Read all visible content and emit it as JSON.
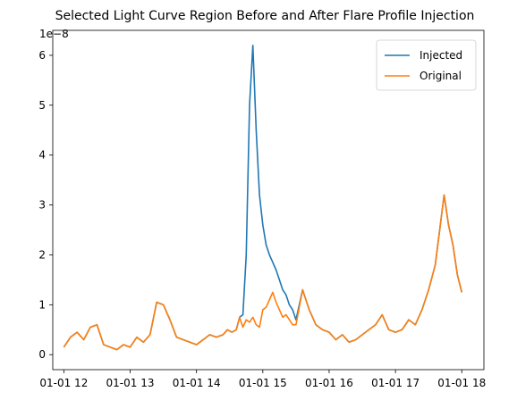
{
  "chart_data": {
    "type": "line",
    "title": "Selected Light Curve Region Before and After Flare Profile Injection",
    "xlabel": "",
    "ylabel": "",
    "y_offset_label": "1e−8",
    "y_units_scale": 1e-08,
    "xlim": [
      "01-01 11:50",
      "01-01 18:20"
    ],
    "ylim": [
      -3e-09,
      6.5e-08
    ],
    "x_ticks": [
      "01-01 12",
      "01-01 13",
      "01-01 14",
      "01-01 15",
      "01-01 16",
      "01-01 17",
      "01-01 18"
    ],
    "y_ticks": [
      0,
      1e-08,
      2e-08,
      3e-08,
      4e-08,
      5e-08,
      6e-08
    ],
    "y_tick_labels": [
      "0",
      "1",
      "2",
      "3",
      "4",
      "5",
      "6"
    ],
    "grid": false,
    "legend_position": "upper-right",
    "series": [
      {
        "name": "Injected",
        "color": "#1f77b4",
        "x": [
          "01-01 12:00",
          "01-01 12:06",
          "01-01 12:12",
          "01-01 12:18",
          "01-01 12:24",
          "01-01 12:30",
          "01-01 12:36",
          "01-01 12:42",
          "01-01 12:48",
          "01-01 12:54",
          "01-01 13:00",
          "01-01 13:06",
          "01-01 13:12",
          "01-01 13:18",
          "01-01 13:24",
          "01-01 13:30",
          "01-01 13:36",
          "01-01 13:42",
          "01-01 13:48",
          "01-01 13:54",
          "01-01 14:00",
          "01-01 14:06",
          "01-01 14:12",
          "01-01 14:18",
          "01-01 14:24",
          "01-01 14:28",
          "01-01 14:32",
          "01-01 14:36",
          "01-01 14:39",
          "01-01 14:42",
          "01-01 14:45",
          "01-01 14:48",
          "01-01 14:51",
          "01-01 14:54",
          "01-01 14:57",
          "01-01 15:00",
          "01-01 15:03",
          "01-01 15:06",
          "01-01 15:09",
          "01-01 15:12",
          "01-01 15:15",
          "01-01 15:18",
          "01-01 15:21",
          "01-01 15:24",
          "01-01 15:27",
          "01-01 15:30",
          "01-01 15:36",
          "01-01 15:42",
          "01-01 15:48",
          "01-01 15:54",
          "01-01 16:00",
          "01-01 16:06",
          "01-01 16:12",
          "01-01 16:18",
          "01-01 16:24",
          "01-01 16:30",
          "01-01 16:36",
          "01-01 16:42",
          "01-01 16:48",
          "01-01 16:54",
          "01-01 17:00",
          "01-01 17:06",
          "01-01 17:12",
          "01-01 17:18",
          "01-01 17:24",
          "01-01 17:30",
          "01-01 17:36",
          "01-01 17:40",
          "01-01 17:44",
          "01-01 17:48",
          "01-01 17:52",
          "01-01 17:56",
          "01-01 18:00"
        ],
        "y": [
          1.5e-09,
          3.5e-09,
          4.5e-09,
          3e-09,
          5.5e-09,
          6e-09,
          2e-09,
          1.5e-09,
          1e-09,
          2e-09,
          1.5e-09,
          3.5e-09,
          2.5e-09,
          4e-09,
          1.05e-08,
          1e-08,
          7e-09,
          3.5e-09,
          3e-09,
          2.5e-09,
          2e-09,
          3e-09,
          4e-09,
          3.5e-09,
          4e-09,
          5e-09,
          4.5e-09,
          5e-09,
          7.5e-09,
          8e-09,
          2e-08,
          5e-08,
          6.2e-08,
          4.5e-08,
          3.2e-08,
          2.6e-08,
          2.2e-08,
          2e-08,
          1.85e-08,
          1.7e-08,
          1.5e-08,
          1.3e-08,
          1.2e-08,
          1e-08,
          9e-09,
          7e-09,
          1.3e-08,
          9e-09,
          6e-09,
          5e-09,
          4.5e-09,
          3e-09,
          4e-09,
          2.5e-09,
          3e-09,
          4e-09,
          5e-09,
          6e-09,
          8e-09,
          5e-09,
          4.5e-09,
          5e-09,
          7e-09,
          6e-09,
          9e-09,
          1.3e-08,
          1.8e-08,
          2.5e-08,
          3.2e-08,
          2.6e-08,
          2.2e-08,
          1.6e-08,
          1.25e-08
        ]
      },
      {
        "name": "Original",
        "color": "#ff7f0e",
        "x": [
          "01-01 12:00",
          "01-01 12:06",
          "01-01 12:12",
          "01-01 12:18",
          "01-01 12:24",
          "01-01 12:30",
          "01-01 12:36",
          "01-01 12:42",
          "01-01 12:48",
          "01-01 12:54",
          "01-01 13:00",
          "01-01 13:06",
          "01-01 13:12",
          "01-01 13:18",
          "01-01 13:24",
          "01-01 13:30",
          "01-01 13:36",
          "01-01 13:42",
          "01-01 13:48",
          "01-01 13:54",
          "01-01 14:00",
          "01-01 14:06",
          "01-01 14:12",
          "01-01 14:18",
          "01-01 14:24",
          "01-01 14:28",
          "01-01 14:32",
          "01-01 14:36",
          "01-01 14:39",
          "01-01 14:42",
          "01-01 14:45",
          "01-01 14:48",
          "01-01 14:51",
          "01-01 14:54",
          "01-01 14:57",
          "01-01 15:00",
          "01-01 15:03",
          "01-01 15:06",
          "01-01 15:09",
          "01-01 15:12",
          "01-01 15:15",
          "01-01 15:18",
          "01-01 15:21",
          "01-01 15:24",
          "01-01 15:27",
          "01-01 15:30",
          "01-01 15:36",
          "01-01 15:42",
          "01-01 15:48",
          "01-01 15:54",
          "01-01 16:00",
          "01-01 16:06",
          "01-01 16:12",
          "01-01 16:18",
          "01-01 16:24",
          "01-01 16:30",
          "01-01 16:36",
          "01-01 16:42",
          "01-01 16:48",
          "01-01 16:54",
          "01-01 17:00",
          "01-01 17:06",
          "01-01 17:12",
          "01-01 17:18",
          "01-01 17:24",
          "01-01 17:30",
          "01-01 17:36",
          "01-01 17:40",
          "01-01 17:44",
          "01-01 17:48",
          "01-01 17:52",
          "01-01 17:56",
          "01-01 18:00"
        ],
        "y": [
          1.5e-09,
          3.5e-09,
          4.5e-09,
          3e-09,
          5.5e-09,
          6e-09,
          2e-09,
          1.5e-09,
          1e-09,
          2e-09,
          1.5e-09,
          3.5e-09,
          2.5e-09,
          4e-09,
          1.05e-08,
          1e-08,
          7e-09,
          3.5e-09,
          3e-09,
          2.5e-09,
          2e-09,
          3e-09,
          4e-09,
          3.5e-09,
          4e-09,
          5e-09,
          4.5e-09,
          5e-09,
          7.5e-09,
          5.5e-09,
          7e-09,
          6.5e-09,
          7.5e-09,
          6e-09,
          5.5e-09,
          9e-09,
          9.5e-09,
          1.1e-08,
          1.25e-08,
          1.05e-08,
          9e-09,
          7.5e-09,
          8e-09,
          7e-09,
          6e-09,
          6e-09,
          1.3e-08,
          9e-09,
          6e-09,
          5e-09,
          4.5e-09,
          3e-09,
          4e-09,
          2.5e-09,
          3e-09,
          4e-09,
          5e-09,
          6e-09,
          8e-09,
          5e-09,
          4.5e-09,
          5e-09,
          7e-09,
          6e-09,
          9e-09,
          1.3e-08,
          1.8e-08,
          2.5e-08,
          3.2e-08,
          2.6e-08,
          2.2e-08,
          1.6e-08,
          1.25e-08
        ]
      }
    ]
  }
}
